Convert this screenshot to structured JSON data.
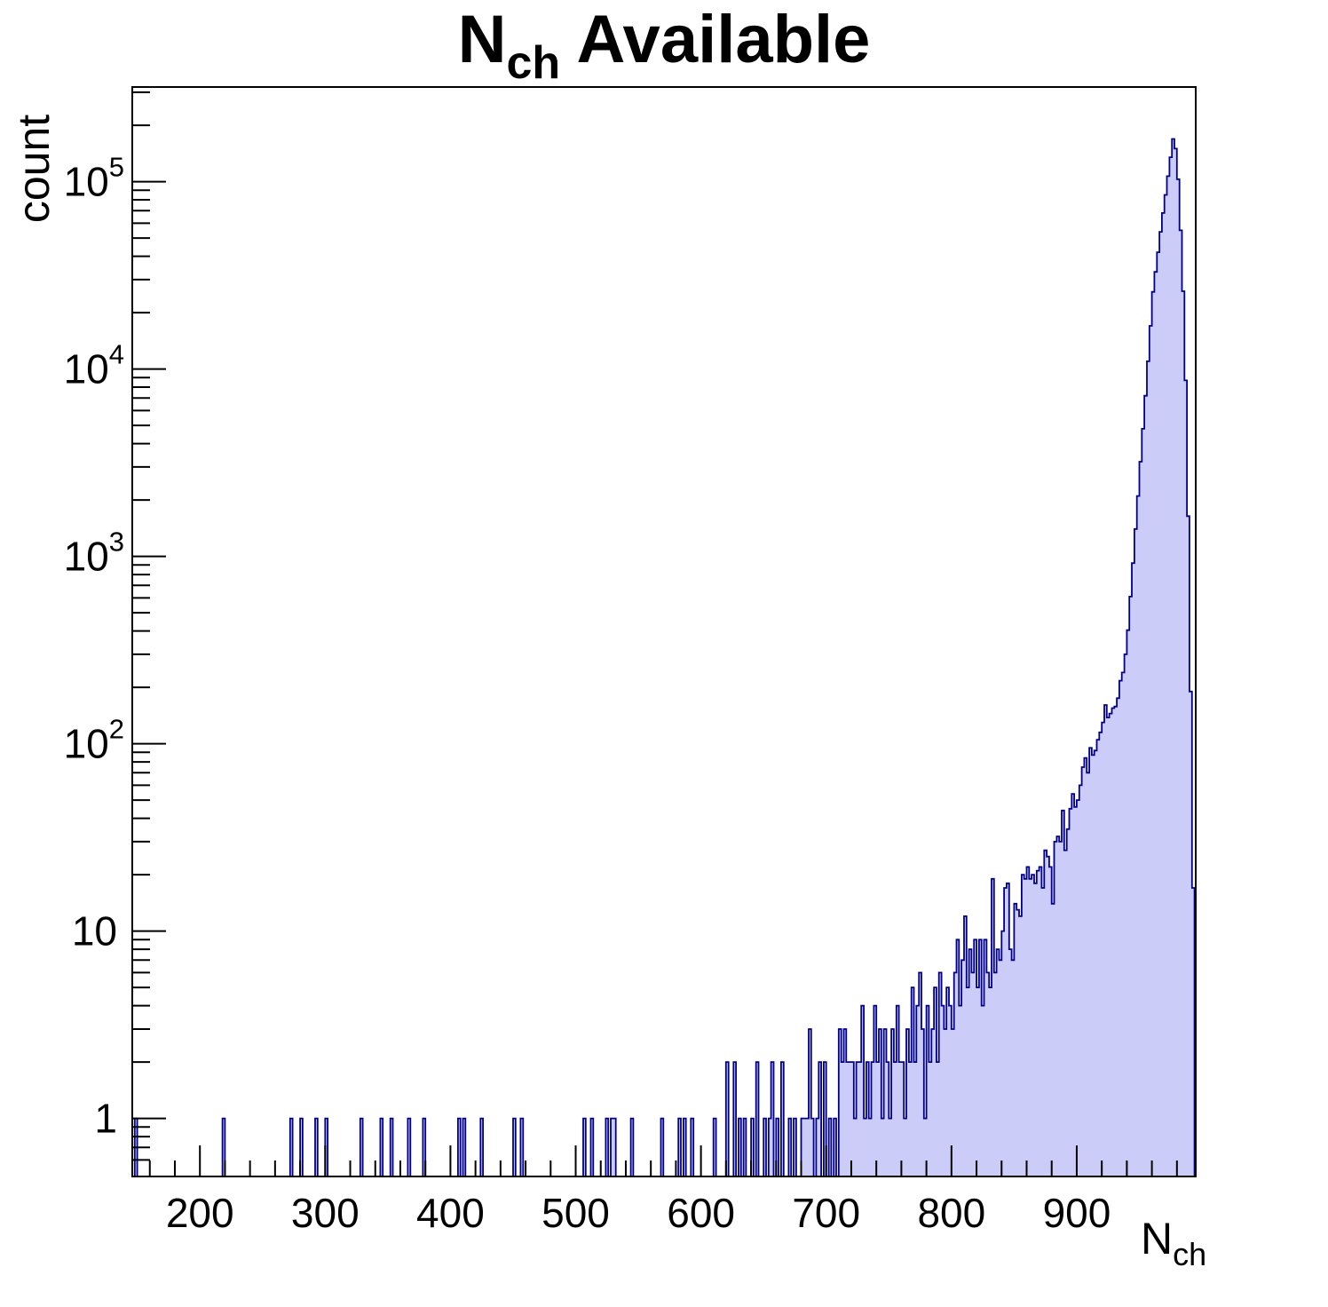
{
  "title": {
    "main": "N",
    "sub": "ch",
    "rest": " Available"
  },
  "colors": {
    "background": "#ffffff",
    "frame": "#000000",
    "hist_fill": "#ccccf9",
    "hist_line": "#00008c",
    "text": "#000000"
  },
  "chart_data": {
    "type": "bar",
    "subtype": "histogram-log-y",
    "title": "N_ch Available",
    "xlabel": {
      "main": "N",
      "sub": "ch"
    },
    "ylabel": "count",
    "x_log": false,
    "y_log": true,
    "grid": false,
    "legend": "none",
    "xlim": [
      146,
      995
    ],
    "ylim": [
      0.49,
      320000
    ],
    "bin_width": 2,
    "peak": {
      "x": 976,
      "count": 169000
    },
    "x_ticks": [
      {
        "value": 200,
        "label": "200"
      },
      {
        "value": 300,
        "label": "300"
      },
      {
        "value": 400,
        "label": "400"
      },
      {
        "value": 500,
        "label": "500"
      },
      {
        "value": 600,
        "label": "600"
      },
      {
        "value": 700,
        "label": "700"
      },
      {
        "value": 800,
        "label": "800"
      },
      {
        "value": 900,
        "label": "900"
      }
    ],
    "x_minor": {
      "start": 160,
      "end": 980,
      "step": 20
    },
    "y_ticks": [
      {
        "value": 1,
        "label": "1",
        "exp": ""
      },
      {
        "value": 10,
        "label": "10",
        "exp": ""
      },
      {
        "value": 100,
        "label": "10",
        "exp": "2"
      },
      {
        "value": 1000,
        "label": "10",
        "exp": "3"
      },
      {
        "value": 10000,
        "label": "10",
        "exp": "4"
      },
      {
        "value": 100000,
        "label": "10",
        "exp": "5"
      }
    ],
    "y_minor_ticks": [
      0.6,
      0.7,
      0.8,
      0.9,
      2,
      3,
      4,
      5,
      6,
      7,
      8,
      9,
      20,
      30,
      40,
      50,
      60,
      70,
      80,
      90,
      200,
      300,
      400,
      500,
      600,
      700,
      800,
      900,
      2000,
      3000,
      4000,
      5000,
      6000,
      7000,
      8000,
      9000,
      20000,
      30000,
      40000,
      50000,
      60000,
      70000,
      80000,
      90000,
      200000,
      300000
    ],
    "bins": [
      [
        148,
        1
      ],
      [
        218,
        1
      ],
      [
        272,
        1
      ],
      [
        280,
        1
      ],
      [
        292,
        1
      ],
      [
        300,
        1
      ],
      [
        328,
        1
      ],
      [
        344,
        1
      ],
      [
        352,
        1
      ],
      [
        366,
        1
      ],
      [
        378,
        1
      ],
      [
        406,
        1
      ],
      [
        410,
        1
      ],
      [
        424,
        1
      ],
      [
        450,
        1
      ],
      [
        456,
        1
      ],
      [
        506,
        1
      ],
      [
        512,
        1
      ],
      [
        524,
        1
      ],
      [
        528,
        1
      ],
      [
        530,
        1
      ],
      [
        544,
        1
      ],
      [
        568,
        1
      ],
      [
        582,
        1
      ],
      [
        586,
        1
      ],
      [
        592,
        1
      ],
      [
        610,
        1
      ],
      [
        620,
        2
      ],
      [
        626,
        2
      ],
      [
        630,
        1
      ],
      [
        634,
        1
      ],
      [
        640,
        1
      ],
      [
        644,
        2
      ],
      [
        650,
        1
      ],
      [
        654,
        1
      ],
      [
        656,
        2
      ],
      [
        660,
        1
      ],
      [
        664,
        2
      ],
      [
        670,
        1
      ],
      [
        674,
        1
      ],
      [
        680,
        1
      ],
      [
        682,
        1
      ],
      [
        684,
        1
      ],
      [
        686,
        3
      ],
      [
        688,
        1
      ],
      [
        692,
        1
      ],
      [
        694,
        2
      ],
      [
        698,
        2
      ],
      [
        702,
        1
      ],
      [
        706,
        1
      ],
      [
        710,
        3
      ],
      [
        712,
        2
      ],
      [
        714,
        3
      ],
      [
        716,
        2
      ],
      [
        718,
        2
      ],
      [
        720,
        2
      ],
      [
        722,
        1
      ],
      [
        724,
        2
      ],
      [
        726,
        2
      ],
      [
        728,
        4
      ],
      [
        730,
        1
      ],
      [
        732,
        2
      ],
      [
        734,
        1
      ],
      [
        736,
        2
      ],
      [
        738,
        4
      ],
      [
        740,
        2
      ],
      [
        742,
        3
      ],
      [
        744,
        1
      ],
      [
        746,
        3
      ],
      [
        748,
        2
      ],
      [
        750,
        1
      ],
      [
        752,
        3
      ],
      [
        754,
        2
      ],
      [
        756,
        4
      ],
      [
        758,
        2
      ],
      [
        760,
        2
      ],
      [
        762,
        1
      ],
      [
        764,
        3
      ],
      [
        766,
        2
      ],
      [
        768,
        5
      ],
      [
        770,
        2
      ],
      [
        772,
        4
      ],
      [
        774,
        6
      ],
      [
        776,
        3
      ],
      [
        778,
        1
      ],
      [
        780,
        4
      ],
      [
        782,
        2
      ],
      [
        784,
        3
      ],
      [
        786,
        5
      ],
      [
        788,
        2
      ],
      [
        790,
        6
      ],
      [
        792,
        4
      ],
      [
        794,
        3
      ],
      [
        796,
        5
      ],
      [
        798,
        4
      ],
      [
        800,
        3
      ],
      [
        802,
        6
      ],
      [
        804,
        9
      ],
      [
        806,
        4
      ],
      [
        808,
        7
      ],
      [
        810,
        12
      ],
      [
        812,
        5
      ],
      [
        814,
        8
      ],
      [
        816,
        6
      ],
      [
        818,
        9
      ],
      [
        820,
        5
      ],
      [
        822,
        9
      ],
      [
        824,
        4
      ],
      [
        826,
        9
      ],
      [
        828,
        6
      ],
      [
        830,
        5
      ],
      [
        832,
        19
      ],
      [
        834,
        6
      ],
      [
        836,
        8
      ],
      [
        838,
        7
      ],
      [
        840,
        10
      ],
      [
        842,
        17
      ],
      [
        844,
        18
      ],
      [
        846,
        8
      ],
      [
        848,
        7
      ],
      [
        850,
        14
      ],
      [
        852,
        13
      ],
      [
        854,
        12
      ],
      [
        856,
        20
      ],
      [
        858,
        19
      ],
      [
        860,
        22
      ],
      [
        862,
        19
      ],
      [
        864,
        20
      ],
      [
        866,
        18
      ],
      [
        868,
        21
      ],
      [
        870,
        22
      ],
      [
        872,
        17
      ],
      [
        874,
        27
      ],
      [
        876,
        25
      ],
      [
        878,
        22
      ],
      [
        880,
        14
      ],
      [
        882,
        30
      ],
      [
        884,
        32
      ],
      [
        886,
        30
      ],
      [
        888,
        44
      ],
      [
        890,
        27
      ],
      [
        892,
        35
      ],
      [
        894,
        45
      ],
      [
        896,
        54
      ],
      [
        898,
        46
      ],
      [
        900,
        50
      ],
      [
        902,
        60
      ],
      [
        904,
        75
      ],
      [
        906,
        84
      ],
      [
        908,
        70
      ],
      [
        910,
        95
      ],
      [
        912,
        87
      ],
      [
        914,
        92
      ],
      [
        916,
        105
      ],
      [
        918,
        115
      ],
      [
        920,
        130
      ],
      [
        922,
        161
      ],
      [
        924,
        138
      ],
      [
        926,
        145
      ],
      [
        928,
        155
      ],
      [
        930,
        158
      ],
      [
        932,
        175
      ],
      [
        934,
        217
      ],
      [
        936,
        240
      ],
      [
        938,
        300
      ],
      [
        940,
        404
      ],
      [
        942,
        610
      ],
      [
        944,
        920
      ],
      [
        946,
        1400
      ],
      [
        948,
        2100
      ],
      [
        950,
        3200
      ],
      [
        952,
        4800
      ],
      [
        954,
        7200
      ],
      [
        956,
        11000
      ],
      [
        958,
        17000
      ],
      [
        960,
        25800
      ],
      [
        962,
        33000
      ],
      [
        964,
        42000
      ],
      [
        966,
        54000
      ],
      [
        968,
        68000
      ],
      [
        970,
        85000
      ],
      [
        972,
        107000
      ],
      [
        974,
        135000
      ],
      [
        976,
        169000
      ],
      [
        978,
        150000
      ],
      [
        980,
        103000
      ],
      [
        982,
        55000
      ],
      [
        984,
        26000
      ],
      [
        986,
        8700
      ],
      [
        988,
        1640
      ],
      [
        990,
        190
      ],
      [
        992,
        17
      ]
    ]
  }
}
